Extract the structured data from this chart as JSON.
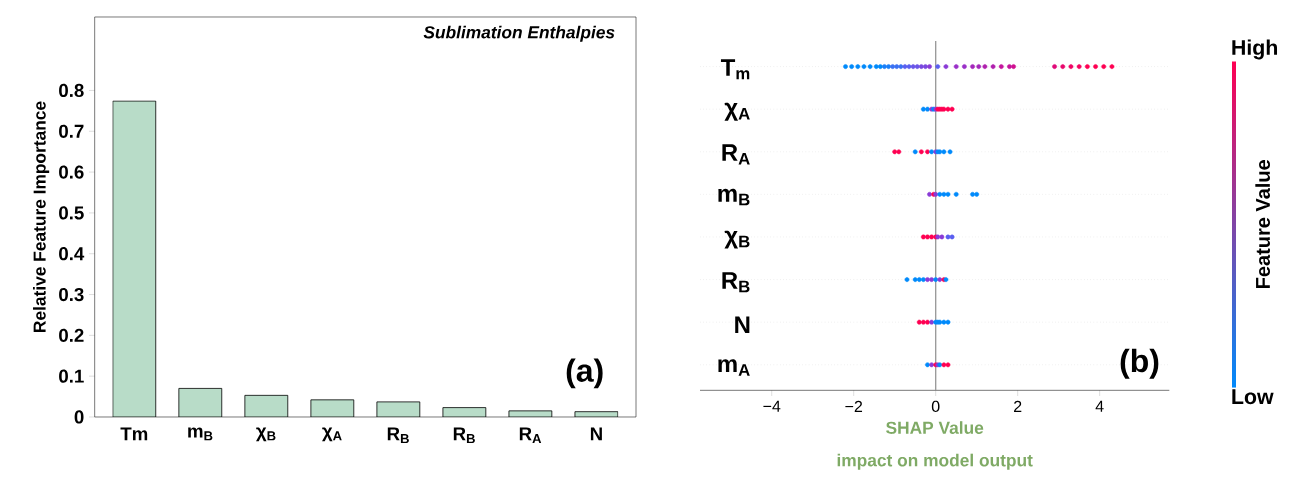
{
  "chart_data": [
    {
      "type": "bar",
      "title": "Sublimation Enthalpies",
      "ylabel": "Relative Feature Importance",
      "categories": [
        "Tm",
        "m$_{B}$",
        "χ$_{B}$",
        "χ$_{A}$",
        "R$_{B}$",
        "R$_{B}$",
        "R$_{A}$",
        "N"
      ],
      "values": [
        0.774,
        0.07,
        0.053,
        0.042,
        0.037,
        0.023,
        0.015,
        0.013
      ],
      "color": "#b8dcc8",
      "ylim": [
        0,
        0.98
      ],
      "yticks": [
        0,
        0.1,
        0.2,
        0.3,
        0.4,
        0.5,
        0.6,
        0.7,
        0.8
      ],
      "annotations": [
        "(a)"
      ]
    },
    {
      "type": "scatter",
      "orientation": "horizontal",
      "xlabel": "SHAP Value",
      "categories": [
        "T$_{m}$",
        "χ$_{A}$",
        "R$_{A}$",
        "m$_{B}$",
        "χ$_{B}$",
        "R$_{B}$",
        "N",
        "m$_{A}$"
      ],
      "series": [
        {
          "x": [
            "T$_{m}$",
            "T$_{m}$",
            "T$_{m}$",
            "T$_{m}$",
            "T$_{m}$",
            "T$_{m}$",
            "T$_{m}$",
            "T$_{m}$",
            "T$_{m}$",
            "T$_{m}$",
            "T$_{m}$",
            "T$_{m}$",
            "T$_{m}$",
            "T$_{m}$",
            "T$_{m}$",
            "T$_{m}$",
            "T$_{m}$",
            "T$_{m}$",
            "T$_{m}$",
            "T$_{m}$",
            "T$_{m}$",
            "T$_{m}$",
            "T$_{m}$",
            "T$_{m}$",
            "T$_{m}$",
            "T$_{m}$",
            "T$_{m}$",
            "T$_{m}$",
            "T$_{m}$",
            "T$_{m}$",
            "T$_{m}$",
            "T$_{m}$",
            "T$_{m}$",
            "T$_{m}$",
            "T$_{m}$",
            "T$_{m}$",
            "T$_{m}$",
            "T$_{m}$"
          ],
          "values": [
            -2.2,
            -2.05,
            -1.9,
            -1.75,
            -1.6,
            -1.45,
            -1.35,
            -1.25,
            -1.15,
            -1.05,
            -0.95,
            -0.85,
            -0.75,
            -0.65,
            -0.55,
            -0.45,
            -0.35,
            -0.25,
            -0.15,
            0.05,
            0.25,
            0.5,
            0.7,
            0.9,
            1.05,
            1.2,
            1.4,
            1.6,
            1.8,
            1.9,
            2.9,
            3.1,
            3.3,
            3.5,
            3.7,
            3.9,
            4.1,
            4.3
          ],
          "colors": [
            "#008afb",
            "#008afb",
            "#008afb",
            "#008afb",
            "#008afb",
            "#008afb",
            "#008afb",
            "#1a7ff8",
            "#1a7ff8",
            "#3a70f2",
            "#3a70f2",
            "#3a70f2",
            "#5a5ff0",
            "#5a5ff0",
            "#6a55e8",
            "#6a55e8",
            "#7a48df",
            "#7a48df",
            "#8a3ad6",
            "#5a5ff0",
            "#8a3ad6",
            "#9a30c8",
            "#9a30c8",
            "#a428bb",
            "#a428bb",
            "#b020ad",
            "#b020ad",
            "#c4159c",
            "#c4159c",
            "#d00f90",
            "#e00a78",
            "#e8086c",
            "#f00565",
            "#f50360",
            "#ff0052",
            "#ff0052",
            "#ff0052",
            "#ff0052"
          ]
        },
        {
          "x": [
            "χ$_{A}$",
            "χ$_{A}$",
            "χ$_{A}$",
            "χ$_{A}$",
            "χ$_{A}$",
            "χ$_{A}$",
            "χ$_{A}$",
            "χ$_{A}$",
            "χ$_{A}$",
            "χ$_{A}$",
            "χ$_{A}$"
          ],
          "values": [
            -0.3,
            -0.2,
            -0.1,
            -0.05,
            0.0,
            0.05,
            0.1,
            0.15,
            0.2,
            0.3,
            0.4
          ],
          "colors": [
            "#008afb",
            "#008afb",
            "#8a3ad6",
            "#008afb",
            "#8a3ad6",
            "#ff0052",
            "#ff0052",
            "#ff0052",
            "#ff0052",
            "#ff0052",
            "#ff0052"
          ]
        },
        {
          "x": [
            "R$_{A}$",
            "R$_{A}$",
            "R$_{A}$",
            "R$_{A}$",
            "R$_{A}$",
            "R$_{A}$",
            "R$_{A}$",
            "R$_{A}$",
            "R$_{A}$",
            "R$_{A}$",
            "R$_{A}$"
          ],
          "values": [
            -1.0,
            -0.9,
            -0.5,
            -0.35,
            -0.2,
            -0.1,
            0.0,
            0.05,
            0.1,
            0.2,
            0.35
          ],
          "colors": [
            "#ff0052",
            "#ff0052",
            "#008afb",
            "#ff0052",
            "#ff0052",
            "#008afb",
            "#8a3ad6",
            "#008afb",
            "#008afb",
            "#008afb",
            "#008afb"
          ]
        },
        {
          "x": [
            "m$_{B}$",
            "m$_{B}$",
            "m$_{B}$",
            "m$_{B}$",
            "m$_{B}$",
            "m$_{B}$",
            "m$_{B}$",
            "m$_{B}$",
            "m$_{B}$"
          ],
          "values": [
            -0.15,
            -0.05,
            0.0,
            0.1,
            0.2,
            0.3,
            0.5,
            0.9,
            1.0
          ],
          "colors": [
            "#8a3ad6",
            "#ff0052",
            "#8a3ad6",
            "#008afb",
            "#008afb",
            "#008afb",
            "#008afb",
            "#008afb",
            "#008afb"
          ]
        },
        {
          "x": [
            "χ$_{B}$",
            "χ$_{B}$",
            "χ$_{B}$",
            "χ$_{B}$",
            "χ$_{B}$",
            "χ$_{B}$",
            "χ$_{B}$",
            "χ$_{B}$"
          ],
          "values": [
            -0.3,
            -0.2,
            -0.1,
            0.0,
            0.05,
            0.15,
            0.3,
            0.4
          ],
          "colors": [
            "#ff0052",
            "#ff0052",
            "#ff0052",
            "#ff0052",
            "#8a3ad6",
            "#8a3ad6",
            "#5a5ff0",
            "#5a5ff0"
          ]
        },
        {
          "x": [
            "R$_{B}$",
            "R$_{B}$",
            "R$_{B}$",
            "R$_{B}$",
            "R$_{B}$",
            "R$_{B}$",
            "R$_{B}$",
            "R$_{B}$",
            "R$_{B}$",
            "R$_{B}$"
          ],
          "values": [
            -0.7,
            -0.5,
            -0.4,
            -0.3,
            -0.2,
            -0.1,
            0.0,
            0.1,
            0.2,
            0.25
          ],
          "colors": [
            "#008afb",
            "#008afb",
            "#008afb",
            "#008afb",
            "#8a3ad6",
            "#8a3ad6",
            "#008afb",
            "#8a3ad6",
            "#ff0052",
            "#008afb"
          ]
        },
        {
          "x": [
            "N",
            "N",
            "N",
            "N",
            "N",
            "N",
            "N",
            "N",
            "N"
          ],
          "values": [
            -0.4,
            -0.3,
            -0.2,
            -0.1,
            0.0,
            0.05,
            0.1,
            0.2,
            0.3
          ],
          "colors": [
            "#ff0052",
            "#ff0052",
            "#ff0052",
            "#8a3ad6",
            "#008afb",
            "#008afb",
            "#008afb",
            "#008afb",
            "#008afb"
          ]
        },
        {
          "x": [
            "m$_{A}$",
            "m$_{A}$",
            "m$_{A}$",
            "m$_{A}$",
            "m$_{A}$",
            "m$_{A}$",
            "m$_{A}$"
          ],
          "values": [
            -0.2,
            -0.1,
            0.0,
            0.05,
            0.1,
            0.2,
            0.3
          ],
          "colors": [
            "#008afb",
            "#8a3ad6",
            "#ff0052",
            "#8a3ad6",
            "#008afb",
            "#ff0052",
            "#ff0052"
          ]
        }
      ],
      "xlim": [
        -5.75,
        5.7
      ],
      "xticks": [
        {
          "value": -4,
          "label": "−4"
        },
        {
          "value": -2,
          "label": "−2"
        },
        0,
        2,
        4
      ],
      "grid": "y",
      "ref_lines": [
        {
          "axis": "x",
          "value": 0,
          "color": "#999999"
        }
      ],
      "clabel": "Feature Value",
      "annotations": [
        "impact on model output",
        "(b)",
        "High",
        "Low"
      ]
    }
  ]
}
